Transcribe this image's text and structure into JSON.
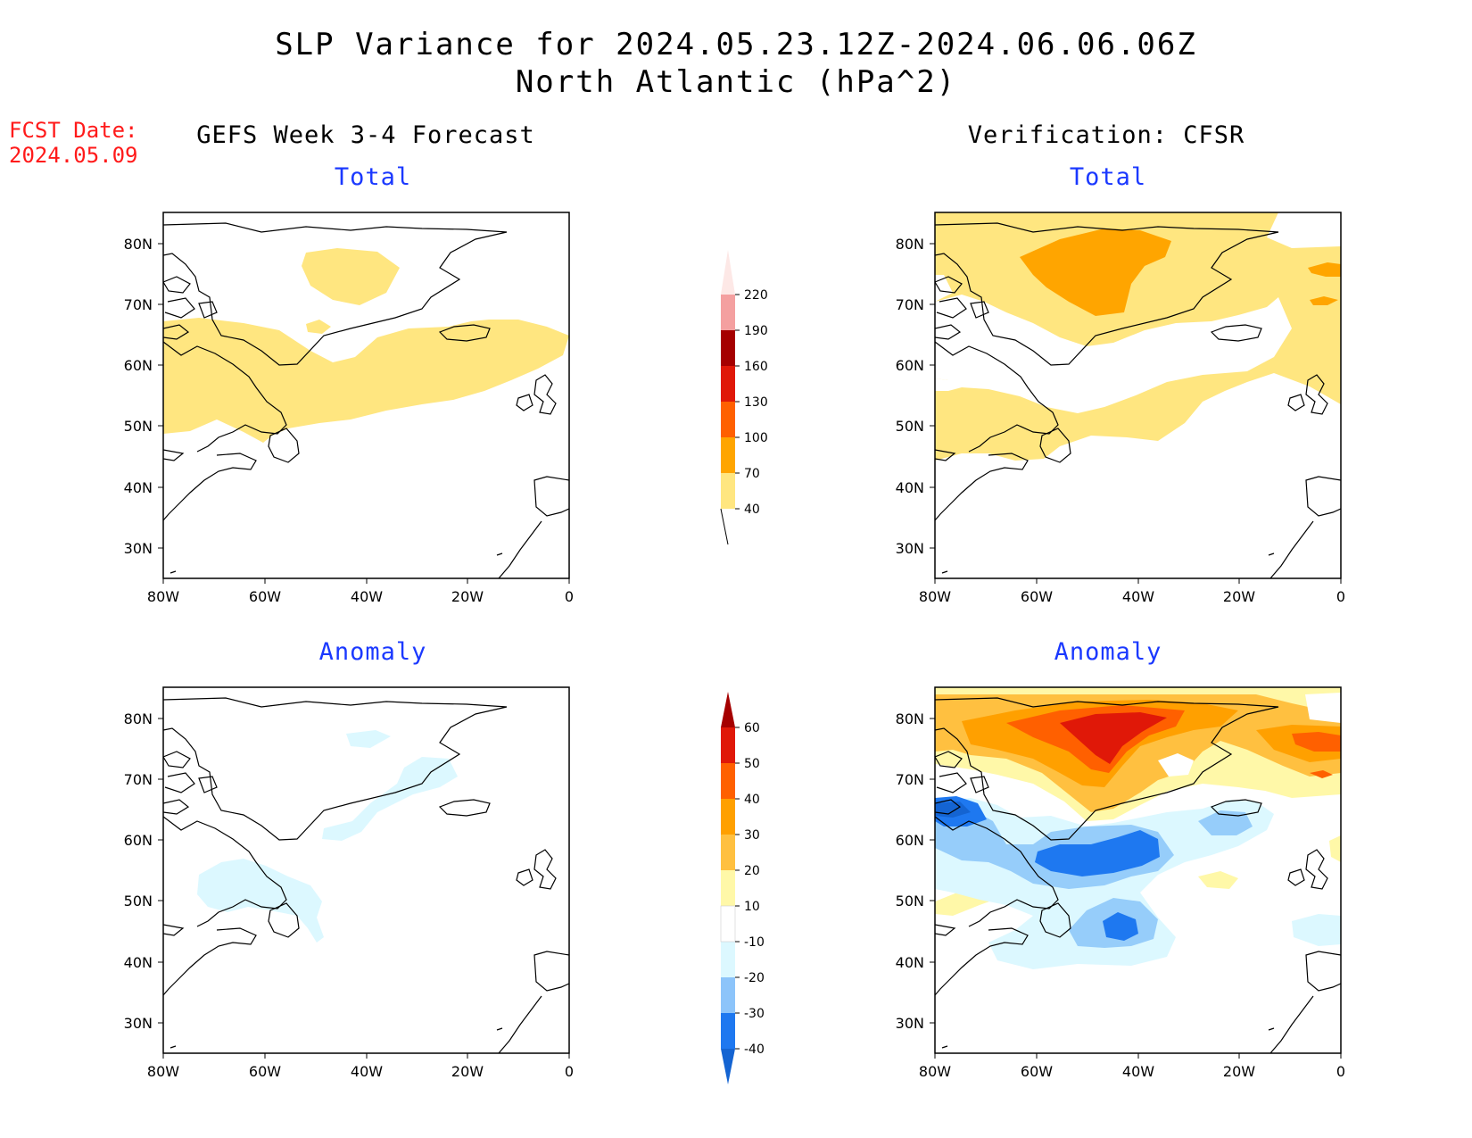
{
  "header": {
    "title_line1": "SLP Variance for 2024.05.23.12Z-2024.06.06.06Z",
    "title_line2": "North Atlantic (hPa^2)"
  },
  "fcst": {
    "label": "FCST Date:",
    "date": "2024.05.09"
  },
  "columns": {
    "left": "GEFS Week 3-4 Forecast",
    "right": "Verification: CFSR"
  },
  "panels": {
    "top_left": "Total",
    "top_right": "Total",
    "bottom_left": "Anomaly",
    "bottom_right": "Anomaly"
  },
  "axes": {
    "lat_ticks": [
      "80N",
      "70N",
      "60N",
      "50N",
      "40N",
      "30N"
    ],
    "lon_ticks": [
      "80W",
      "60W",
      "40W",
      "20W",
      "0"
    ]
  },
  "colorbars": {
    "total": {
      "levels": [
        "40",
        "70",
        "100",
        "130",
        "160",
        "190",
        "220"
      ],
      "colors": [
        "#ffe680",
        "#ffa500",
        "#ff6000",
        "#e01808",
        "#a50000",
        "#f4a0a0",
        "#fde8e6"
      ]
    },
    "anomaly": {
      "levels": [
        "-40",
        "-30",
        "-20",
        "-10",
        "10",
        "20",
        "30",
        "40",
        "50",
        "60"
      ],
      "colors": [
        "#1464d2",
        "#1e78f0",
        "#8cc4fa",
        "#dcf8ff",
        "#ffffff",
        "#fff8a8",
        "#ffc040",
        "#ffa000",
        "#ff6000",
        "#e01808",
        "#a50000"
      ]
    }
  },
  "palette": {
    "total_40_70": "#ffe680",
    "total_70_100": "#ffa500",
    "anom_neg_10": "#dcf8ff",
    "anom_neg_20": "#96cdfa",
    "anom_neg_30": "#1e78f0",
    "anom_neg_40": "#1464d2",
    "anom_pos_10": "#fff8a8",
    "anom_pos_20": "#ffc040",
    "anom_pos_30": "#ffa000",
    "anom_pos_40": "#ff6000",
    "anom_pos_50": "#e01808",
    "title_blue": "#1b39ff",
    "fcst_red": "#ff1a1a"
  }
}
